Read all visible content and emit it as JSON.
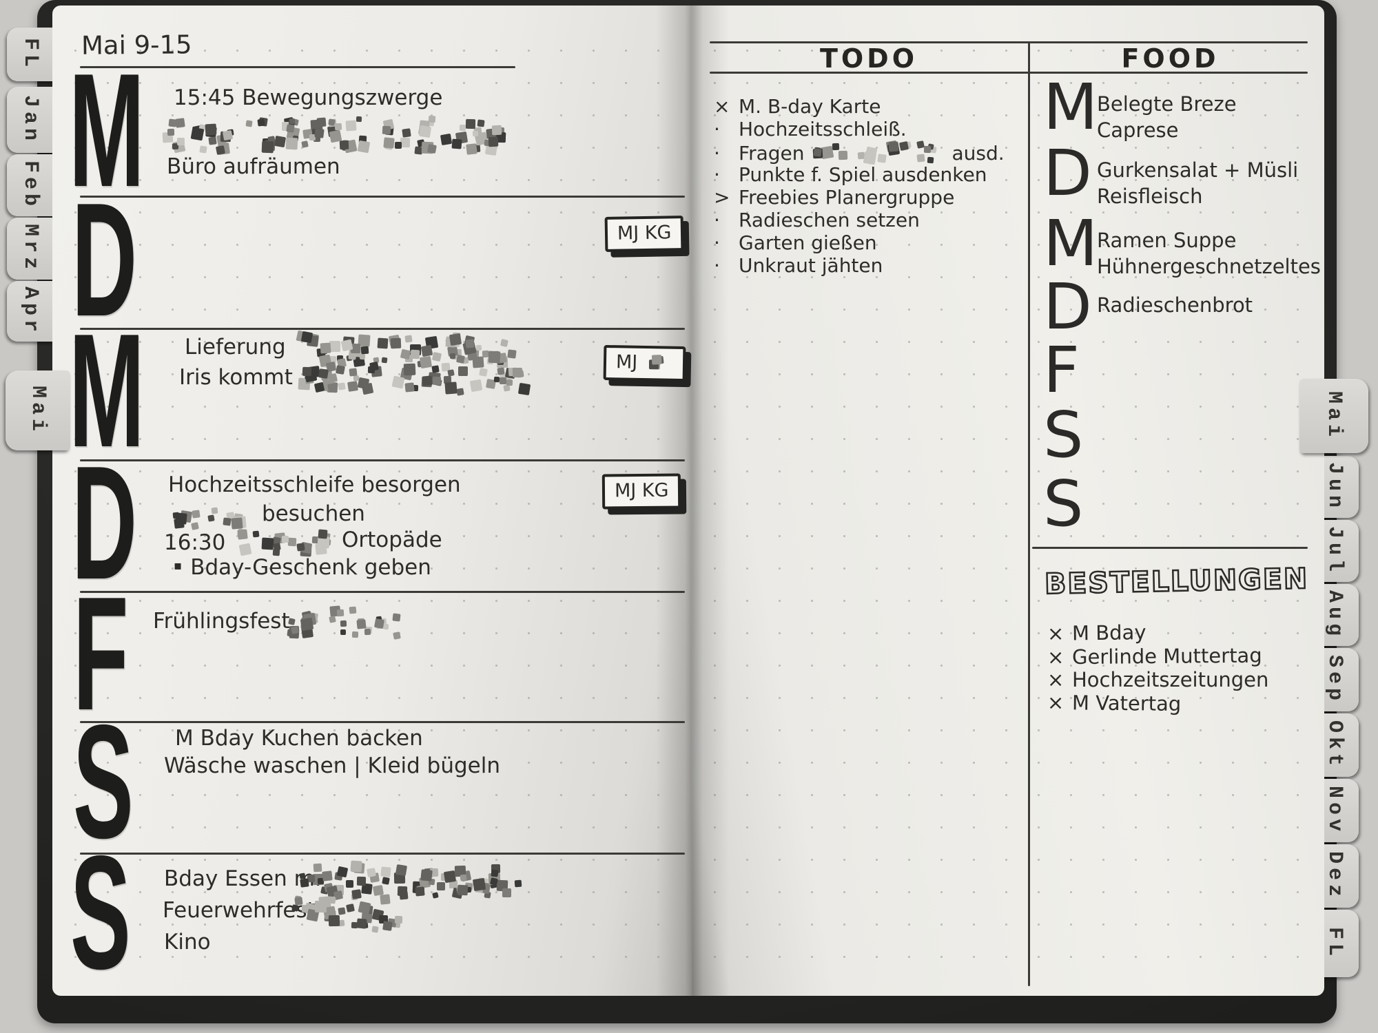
{
  "title": "Mai 9-15",
  "symbols": {
    "square_bullet": "▪"
  },
  "colors": {
    "ink": "#2d2c29",
    "paper": "#efeee9",
    "cover": "#232321",
    "tab": "#d6d4d1"
  },
  "tabs": {
    "left": [
      "FL",
      "Jan",
      "Feb",
      "Mrz",
      "Apr",
      "Mai"
    ],
    "right": [
      "Mai",
      "Jun",
      "Jul",
      "Aug",
      "Sep",
      "Okt",
      "Nov",
      "Dez",
      "FL"
    ]
  },
  "week": [
    {
      "letter": "M",
      "badge": "",
      "entries": [
        "15:45 Bewegungszwerge",
        "Büro aufräumen"
      ]
    },
    {
      "letter": "D",
      "badge": "MJ KG",
      "entries": []
    },
    {
      "letter": "M",
      "badge": "MJ",
      "entries": [
        "Lieferung",
        "Iris kommt"
      ]
    },
    {
      "letter": "D",
      "badge": "MJ KG",
      "entries": [
        "Hochzeitsschleife besorgen",
        "besuchen",
        "16:30",
        "Ortopäde",
        "Bday-Geschenk geben"
      ]
    },
    {
      "letter": "F",
      "badge": "",
      "entries": [
        "Frühlingsfest"
      ]
    },
    {
      "letter": "S",
      "badge": "",
      "entries": [
        "M Bday Kuchen backen",
        "Wäsche waschen | Kleid bügeln"
      ]
    },
    {
      "letter": "S",
      "badge": "",
      "entries": [
        "Bday Essen m.",
        "Feuerwehrfest",
        "Kino"
      ]
    }
  ],
  "todo": {
    "header": "TODO",
    "items": [
      {
        "b": "×",
        "t": "M. B-day Karte",
        "a": ""
      },
      {
        "b": "·",
        "t": "Hochzeitsschleiß.",
        "a": ""
      },
      {
        "b": "·",
        "t": "Fragen",
        "a": "ausd."
      },
      {
        "b": "·",
        "t": "Punkte f. Spiel ausdenken",
        "a": ""
      },
      {
        "b": ">",
        "t": "Freebies Planergruppe",
        "a": ""
      },
      {
        "b": "·",
        "t": "Radieschen setzen",
        "a": ""
      },
      {
        "b": "·",
        "t": "Garten gießen",
        "a": ""
      },
      {
        "b": "·",
        "t": "Unkraut jähten",
        "a": ""
      }
    ]
  },
  "food": {
    "header": "FOOD",
    "rows": [
      {
        "letter": "M",
        "lines": [
          "Belegte Breze",
          "Caprese"
        ]
      },
      {
        "letter": "D",
        "lines": [
          "Gurkensalat + Müsli",
          "Reisfleisch"
        ]
      },
      {
        "letter": "M",
        "lines": [
          "Ramen Suppe",
          "Hühnergeschnetzeltes"
        ]
      },
      {
        "letter": "D",
        "lines": [
          "Radieschenbrot"
        ]
      },
      {
        "letter": "F",
        "lines": []
      },
      {
        "letter": "S",
        "lines": []
      },
      {
        "letter": "S",
        "lines": []
      }
    ]
  },
  "bestellungen": {
    "header": "BESTELLUNGEN",
    "bullet": "×",
    "items": [
      "M Bday",
      "Gerlinde Muttertag",
      "Hochzeitszeitungen",
      "M Vatertag"
    ]
  }
}
